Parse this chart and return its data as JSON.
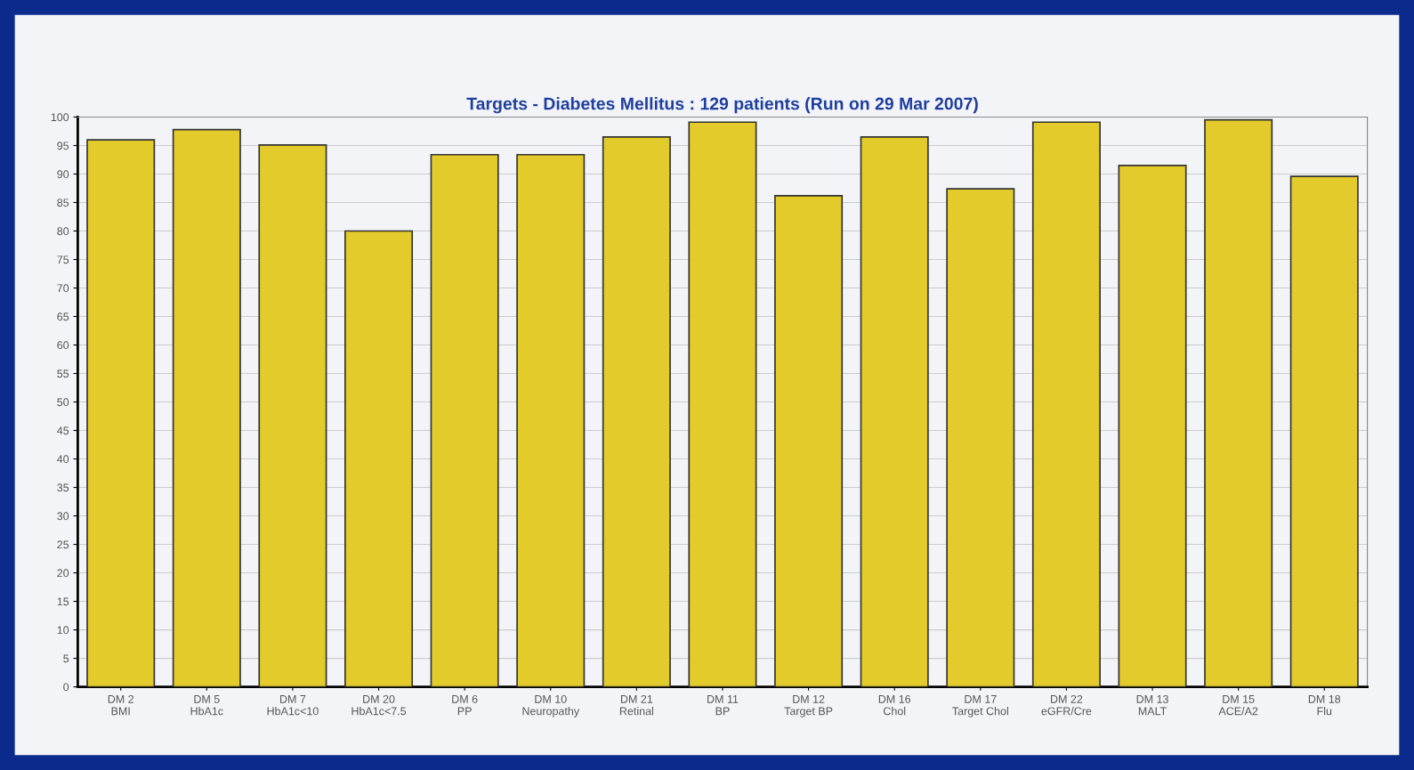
{
  "chart_data": {
    "type": "bar",
    "title": "Targets - Diabetes Mellitus : 129 patients (Run on 29 Mar 2007)",
    "categories": [
      "DM 2\nBMI",
      "DM 5\nHbA1c",
      "DM 7\nHbA1c<10",
      "DM 20\nHbA1c<7.5",
      "DM 6\nPP",
      "DM 10\nNeuropathy",
      "DM 21\nRetinal",
      "DM 11\nBP",
      "DM 12\nTarget BP",
      "DM 16\nChol",
      "DM 17\nTarget Chol",
      "DM 22\neGFR/Cre",
      "DM 13\nMALT",
      "DM 15\nACE/A2",
      "DM 18\nFlu"
    ],
    "values": [
      96,
      97.8,
      95.1,
      80,
      93.4,
      93.4,
      96.5,
      99.1,
      86.2,
      96.5,
      87.4,
      99.1,
      91.5,
      99.5,
      89.6
    ],
    "color": "#e2cb2a",
    "ylim": [
      0,
      100
    ],
    "yticks": [
      0,
      5,
      10,
      15,
      20,
      25,
      30,
      35,
      40,
      45,
      50,
      55,
      60,
      65,
      70,
      75,
      80,
      85,
      90,
      95,
      100
    ],
    "grid": "y"
  }
}
